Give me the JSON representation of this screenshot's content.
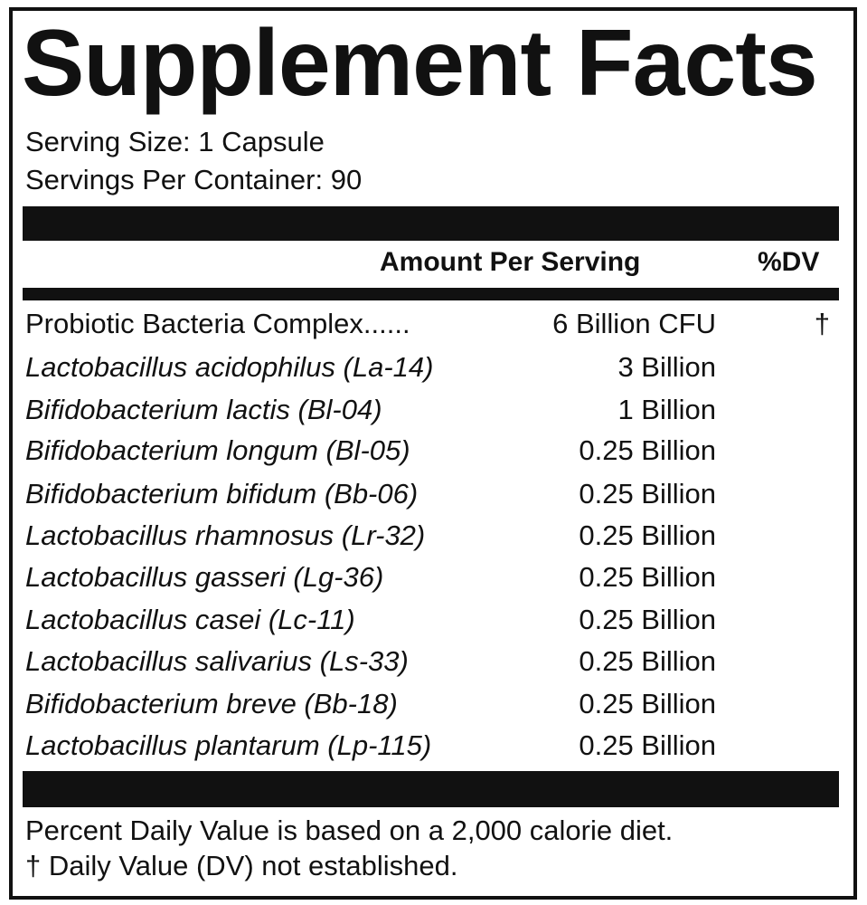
{
  "title": "Supplement Facts",
  "serving_size": "Serving Size: 1 Capsule",
  "servings_per_container": "Servings Per Container: 90",
  "header": {
    "amount": "Amount Per Serving",
    "dv": "%DV"
  },
  "rows": [
    {
      "name": "Probiotic Bacteria Complex......",
      "amount": "6 Billion CFU",
      "dv": "†",
      "italic": false
    },
    {
      "name": "Lactobacillus acidophilus (La-14)",
      "amount": "3 Billion",
      "dv": "",
      "italic": true
    },
    {
      "name": "Bifidobacterium lactis (Bl-04)",
      "amount": "1 Billion",
      "dv": "",
      "italic": true
    },
    {
      "name": "Bifidobacterium longum (Bl-05)",
      "amount": "0.25 Billion",
      "dv": "",
      "italic": true
    },
    {
      "name": "Bifidobacterium bifidum (Bb-06)",
      "amount": "0.25 Billion",
      "dv": "",
      "italic": true
    },
    {
      "name": "Lactobacillus rhamnosus (Lr-32)",
      "amount": "0.25 Billion",
      "dv": "",
      "italic": true
    },
    {
      "name": "Lactobacillus gasseri (Lg-36)",
      "amount": "0.25 Billion",
      "dv": "",
      "italic": true
    },
    {
      "name": "Lactobacillus casei (Lc-11)",
      "amount": "0.25 Billion",
      "dv": "",
      "italic": true
    },
    {
      "name": "Lactobacillus salivarius (Ls-33)",
      "amount": "0.25 Billion",
      "dv": "",
      "italic": true
    },
    {
      "name": "Bifidobacterium breve (Bb-18)",
      "amount": "0.25 Billion",
      "dv": "",
      "italic": true
    },
    {
      "name": "Lactobacillus plantarum (Lp-115)",
      "amount": "0.25 Billion",
      "dv": "",
      "italic": true
    }
  ],
  "footer": {
    "line1": "Percent Daily Value is based on a 2,000 calorie diet.",
    "line2": "† Daily Value (DV) not established."
  }
}
